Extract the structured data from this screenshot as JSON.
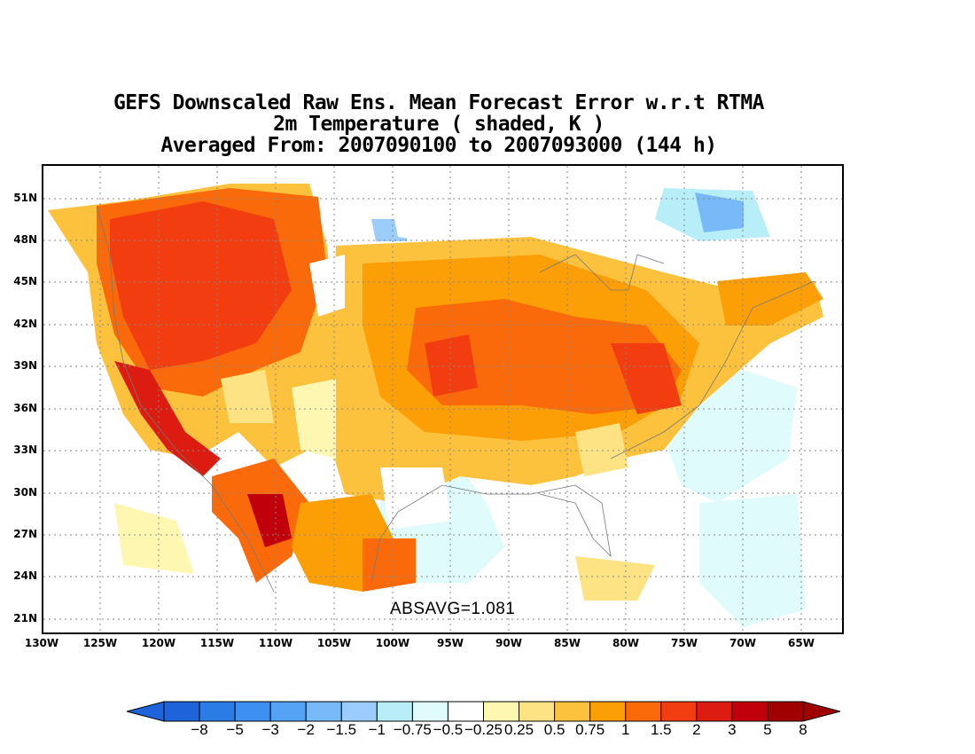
{
  "title": {
    "line1": "GEFS Downscaled Raw Ens. Mean Forecast Error w.r.t RTMA",
    "line2": "2m Temperature ( shaded, K )",
    "line3": "Averaged From: 2007090100 to 2007093000 (144 h)"
  },
  "map": {
    "lat_labels": [
      "51N",
      "48N",
      "45N",
      "42N",
      "39N",
      "36N",
      "33N",
      "30N",
      "27N",
      "24N",
      "21N"
    ],
    "lon_labels": [
      "130W",
      "125W",
      "120W",
      "115W",
      "110W",
      "105W",
      "100W",
      "95W",
      "90W",
      "85W",
      "80W",
      "75W",
      "70W",
      "65W"
    ],
    "absavg": "ABSAVG=1.081",
    "colors": {
      "neg_strong": "#1e64dc",
      "neg": "#4a9aee",
      "neg_light": "#b3ecf7",
      "zero": "#ffffff",
      "pos_light": "#fde88a",
      "pos": "#fdac1e",
      "pos_mid": "#fb6a0a",
      "pos_strong": "#e6300c",
      "pos_max": "#b00010"
    }
  },
  "colorbar": {
    "labels": [
      "−8",
      "−5",
      "−3",
      "−2",
      "−1.5",
      "−1",
      "−0.75",
      "−0.5",
      "−0.25",
      "0.25",
      "0.5",
      "0.75",
      "1",
      "1.5",
      "2",
      "3",
      "5",
      "8"
    ],
    "colors": [
      "#1f63da",
      "#2c7ce6",
      "#3d8ff0",
      "#55a3f4",
      "#78b9f8",
      "#9ccdfa",
      "#b8eef8",
      "#dffbfb",
      "#ffffff",
      "#fdf7b2",
      "#fde384",
      "#fcc23d",
      "#fc9e06",
      "#fb6a0a",
      "#f23d10",
      "#dc1c10",
      "#c0000b",
      "#a00000"
    ],
    "left_arrow_color": "#1f63da",
    "right_arrow_color": "#a00000"
  }
}
